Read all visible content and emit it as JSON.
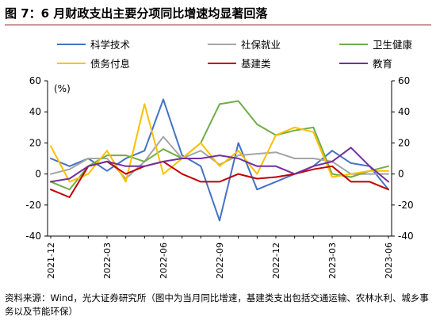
{
  "page": {
    "title": "图 7：6 月财政支出主要分项同比增速均显著回落",
    "source": "资料来源：Wind，光大证券研究所（图中为当月同比增速，基建类支出包括交通运输、农林水利、城乡事务以及节能环保）"
  },
  "chart_data": {
    "type": "line",
    "title": "图 7：6 月财政支出主要分项同比增速均显著回落",
    "ylabel": "(%)",
    "ylim": [
      -40,
      60
    ],
    "yticks": [
      -40,
      -20,
      0,
      20,
      40,
      60
    ],
    "y2ticks": [
      -40,
      -20,
      0,
      20,
      40,
      60
    ],
    "x": [
      "2021-12",
      "2022-01",
      "2022-02",
      "2022-03",
      "2022-04",
      "2022-05",
      "2022-06",
      "2022-07",
      "2022-08",
      "2022-09",
      "2022-10",
      "2022-11",
      "2022-12",
      "2023-01",
      "2023-02",
      "2023-03",
      "2023-04",
      "2023-05",
      "2023-06"
    ],
    "xtick_labels": [
      "2021-12",
      "2022-03",
      "2022-06",
      "2022-09",
      "2022-12",
      "2023-03",
      "2023-06"
    ],
    "xtick_index": [
      0,
      3,
      6,
      9,
      12,
      15,
      18
    ],
    "grid": false,
    "legend": "top",
    "series": [
      {
        "name": "科学技术",
        "color": "#4472c4",
        "values": [
          10,
          5,
          10,
          2,
          10,
          15,
          48,
          12,
          5,
          -30,
          20,
          -10,
          -5,
          0,
          5,
          15,
          7,
          5,
          -10
        ]
      },
      {
        "name": "社保就业",
        "color": "#a5a5a5",
        "values": [
          0,
          3,
          10,
          10,
          -3,
          8,
          24,
          10,
          15,
          6,
          12,
          13,
          14,
          10,
          10,
          8,
          0,
          0,
          0
        ]
      },
      {
        "name": "卫生健康",
        "color": "#70ad47",
        "values": [
          -5,
          -10,
          5,
          12,
          12,
          8,
          16,
          10,
          20,
          45,
          47,
          32,
          25,
          28,
          30,
          0,
          -2,
          2,
          5
        ]
      },
      {
        "name": "债务付息",
        "color": "#ffc000",
        "values": [
          18,
          -5,
          0,
          15,
          -5,
          45,
          0,
          10,
          20,
          5,
          15,
          0,
          25,
          30,
          27,
          -2,
          0,
          2,
          2
        ]
      },
      {
        "name": "基建类",
        "color": "#c00000",
        "values": [
          -10,
          -15,
          5,
          8,
          0,
          5,
          8,
          0,
          -5,
          -5,
          0,
          -3,
          -2,
          0,
          3,
          5,
          -5,
          -5,
          -10
        ]
      },
      {
        "name": "教育",
        "color": "#7030a0",
        "values": [
          -5,
          -3,
          5,
          8,
          5,
          5,
          8,
          10,
          10,
          12,
          10,
          5,
          5,
          0,
          5,
          8,
          17,
          5,
          -5
        ]
      }
    ]
  }
}
